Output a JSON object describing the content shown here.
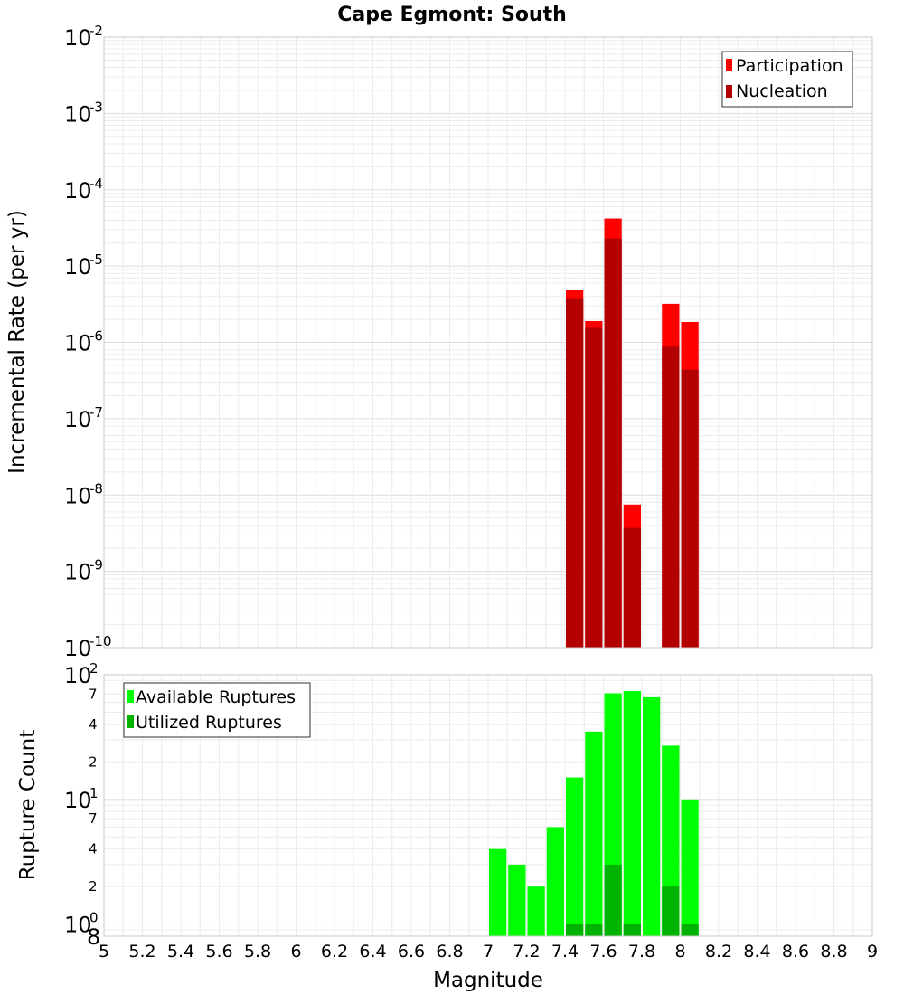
{
  "chart_data": [
    {
      "type": "bar",
      "title": "Cape Egmont: South",
      "ylabel": "Incremental Rate (per yr)",
      "yscale": "log",
      "ylim": [
        1e-10,
        0.01
      ],
      "xlim": [
        5,
        9
      ],
      "bar_width": 0.1,
      "overlay": true,
      "legend": {
        "placement": "top-right",
        "entries": [
          "Participation",
          "Nucleation"
        ]
      },
      "colors": {
        "Participation": "#ff0000",
        "Nucleation": "#b30000"
      },
      "grid": true,
      "decade_ticks": [
        {
          "base": "10",
          "exp": "-2"
        },
        {
          "base": "10",
          "exp": "-3"
        },
        {
          "base": "10",
          "exp": "-4"
        },
        {
          "base": "10",
          "exp": "-5"
        },
        {
          "base": "10",
          "exp": "-6"
        },
        {
          "base": "10",
          "exp": "-7"
        },
        {
          "base": "10",
          "exp": "-8"
        },
        {
          "base": "10",
          "exp": "-9"
        },
        {
          "base": "10",
          "exp": "-10"
        }
      ],
      "x": [
        7.45,
        7.55,
        7.65,
        7.75,
        7.95,
        8.05
      ],
      "series": [
        {
          "name": "Participation",
          "values": [
            4.8e-06,
            1.9e-06,
            4.2e-05,
            7.5e-09,
            3.2e-06,
            1.85e-06
          ]
        },
        {
          "name": "Nucleation",
          "values": [
            3.8e-06,
            1.55e-06,
            2.3e-05,
            3.7e-09,
            8.8e-07,
            4.4e-07
          ]
        }
      ]
    },
    {
      "type": "bar",
      "ylabel": "Rupture Count",
      "xlabel": "Magnitude",
      "yscale": "log",
      "ylim": [
        0.8,
        100
      ],
      "xlim": [
        5,
        9
      ],
      "bar_width": 0.1,
      "overlay": true,
      "legend": {
        "placement": "top-left",
        "entries": [
          "Available Ruptures",
          "Utilized Ruptures"
        ]
      },
      "colors": {
        "Available Ruptures": "#00ff00",
        "Utilized Ruptures": "#00b300"
      },
      "grid": true,
      "decade_ticks": [
        {
          "base": "10",
          "exp": "2"
        },
        {
          "base": "10",
          "exp": "1"
        },
        {
          "base": "10",
          "exp": "0"
        }
      ],
      "minor_tick_labels": [
        "7",
        "4",
        "2",
        "7",
        "4",
        "2",
        "8"
      ],
      "x_tick_labels": [
        "5",
        "5.2",
        "5.4",
        "5.6",
        "5.8",
        "6",
        "6.2",
        "6.4",
        "6.6",
        "6.8",
        "7",
        "7.2",
        "7.4",
        "7.6",
        "7.8",
        "8",
        "8.2",
        "8.4",
        "8.6",
        "8.8",
        "9"
      ],
      "x": [
        7.05,
        7.15,
        7.25,
        7.35,
        7.45,
        7.55,
        7.65,
        7.75,
        7.85,
        7.95,
        8.05
      ],
      "series": [
        {
          "name": "Available Ruptures",
          "values": [
            4,
            3,
            2,
            6,
            15,
            35,
            71,
            74,
            66,
            27,
            10
          ]
        },
        {
          "name": "Utilized Ruptures",
          "values": [
            0,
            0,
            0,
            0,
            1,
            1,
            3,
            1,
            0,
            2,
            1
          ]
        }
      ]
    }
  ]
}
